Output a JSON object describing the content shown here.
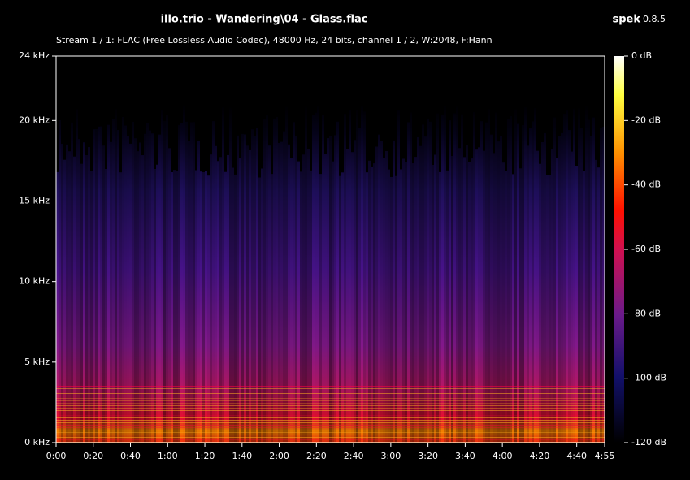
{
  "chart_data": {
    "type": "spectrogram",
    "title": "illo.trio - Wandering\\04 - Glass.flac",
    "app_name": "spek",
    "app_version": "0.8.5",
    "subtitle": "Stream 1 / 1: FLAC (Free Lossless Audio Codec), 48000 Hz, 24 bits, channel 1 / 2, W:2048, F:Hann",
    "xlim": [
      0,
      295
    ],
    "xticks": [
      {
        "value": 0,
        "label": "0:00"
      },
      {
        "value": 20,
        "label": "0:20"
      },
      {
        "value": 40,
        "label": "0:40"
      },
      {
        "value": 60,
        "label": "1:00"
      },
      {
        "value": 80,
        "label": "1:20"
      },
      {
        "value": 100,
        "label": "1:40"
      },
      {
        "value": 120,
        "label": "2:00"
      },
      {
        "value": 140,
        "label": "2:20"
      },
      {
        "value": 160,
        "label": "2:40"
      },
      {
        "value": 180,
        "label": "3:00"
      },
      {
        "value": 200,
        "label": "3:20"
      },
      {
        "value": 220,
        "label": "3:40"
      },
      {
        "value": 240,
        "label": "4:00"
      },
      {
        "value": 260,
        "label": "4:20"
      },
      {
        "value": 280,
        "label": "4:40"
      },
      {
        "value": 295,
        "label": "4:55"
      }
    ],
    "ylim": [
      0,
      24
    ],
    "yticks": [
      {
        "value": 0,
        "label": "0 kHz"
      },
      {
        "value": 5,
        "label": "5 kHz"
      },
      {
        "value": 10,
        "label": "10 kHz"
      },
      {
        "value": 15,
        "label": "15 kHz"
      },
      {
        "value": 20,
        "label": "20 kHz"
      },
      {
        "value": 24,
        "label": "24 kHz"
      }
    ],
    "zlim": [
      -120,
      0
    ],
    "zticks": [
      {
        "value": 0,
        "label": "0 dB"
      },
      {
        "value": -20,
        "label": "-20 dB"
      },
      {
        "value": -40,
        "label": "-40 dB"
      },
      {
        "value": -60,
        "label": "-60 dB"
      },
      {
        "value": -80,
        "label": "-80 dB"
      },
      {
        "value": -100,
        "label": "-100 dB"
      },
      {
        "value": -120,
        "label": "-120 dB"
      }
    ]
  }
}
